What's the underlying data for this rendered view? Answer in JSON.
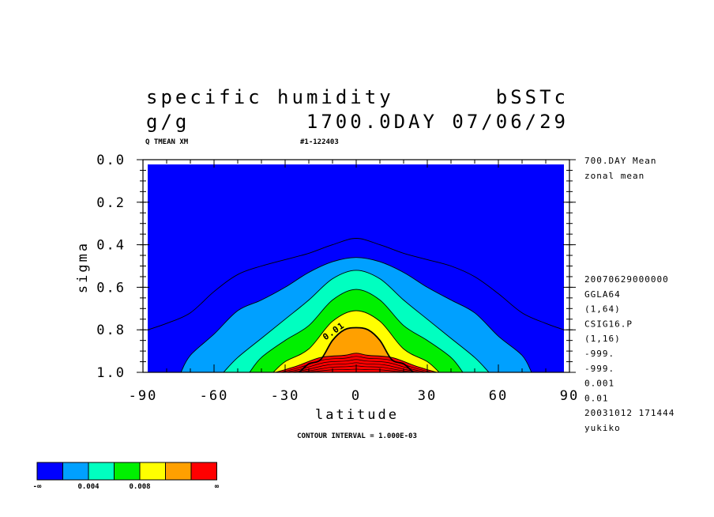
{
  "header": {
    "title_left": "specific humidity",
    "title_right": "bSSTc",
    "units": "g/g",
    "time_info": "1700.0DAY 07/06/29",
    "var_id": "Q TMEAN XM",
    "run_id": "#1-122403"
  },
  "side_info": {
    "top": [
      "700.DAY Mean",
      "zonal mean"
    ],
    "bottom": [
      "20070629000000",
      "GGLA64",
      "(1,64)",
      "CSIG16.P",
      "(1,16)",
      "-999.",
      "-999.",
      "0.001",
      "0.01",
      "20031012 171444",
      "yukiko"
    ]
  },
  "footer": {
    "contour_interval": "CONTOUR INTERVAL = 1.000E-03"
  },
  "legend": {
    "colors": [
      "#0000ff",
      "#00a0ff",
      "#00ffc0",
      "#00f000",
      "#ffff00",
      "#ffa000",
      "#ff0000"
    ],
    "labels": [
      "-∞",
      "0.004",
      "0.008",
      "∞"
    ]
  },
  "chart_data": {
    "type": "heatmap",
    "subtype": "filled-contour",
    "xlabel": "latitude",
    "ylabel": "sigma",
    "xlim": [
      -90,
      90
    ],
    "ylim": [
      1.0,
      0.0
    ],
    "y_inverted": true,
    "x_ticks": [
      "-90",
      "-60",
      "-30",
      "0",
      "30",
      "60",
      "90"
    ],
    "y_ticks": [
      "0.0",
      "0.2",
      "0.4",
      "0.6",
      "0.8",
      "1.0"
    ],
    "contour_label": "0.01",
    "levels": [
      0.001,
      0.002,
      0.004,
      0.006,
      0.008,
      0.01,
      0.012
    ],
    "level_colors": [
      "#00a0ff",
      "#00a0ff",
      "#00ffc0",
      "#00f000",
      "#ffff00",
      "#ffa000",
      "#ff0000"
    ],
    "contours": [
      {
        "level": 0.001,
        "fill": false,
        "lat": [
          -90,
          -80,
          -70,
          -60,
          -50,
          -40,
          -30,
          -20,
          -10,
          0,
          10,
          20,
          30,
          40,
          50,
          60,
          70,
          80,
          90
        ],
        "sigma": [
          0.8,
          0.77,
          0.72,
          0.62,
          0.54,
          0.5,
          0.47,
          0.44,
          0.4,
          0.37,
          0.4,
          0.44,
          0.47,
          0.5,
          0.55,
          0.63,
          0.72,
          0.77,
          0.8
        ]
      },
      {
        "level": 0.002,
        "lat": [
          -74,
          -70,
          -60,
          -50,
          -40,
          -30,
          -20,
          -10,
          0,
          10,
          20,
          30,
          40,
          50,
          60,
          70,
          74
        ],
        "sigma": [
          1.0,
          0.92,
          0.82,
          0.71,
          0.66,
          0.6,
          0.53,
          0.48,
          0.46,
          0.48,
          0.53,
          0.6,
          0.66,
          0.72,
          0.83,
          0.92,
          1.0
        ]
      },
      {
        "level": 0.004,
        "lat": [
          -56,
          -50,
          -40,
          -30,
          -20,
          -10,
          0,
          10,
          20,
          30,
          40,
          50,
          56
        ],
        "sigma": [
          1.0,
          0.93,
          0.84,
          0.75,
          0.66,
          0.56,
          0.52,
          0.56,
          0.66,
          0.75,
          0.84,
          0.93,
          1.0
        ]
      },
      {
        "level": 0.006,
        "lat": [
          -45,
          -40,
          -30,
          -20,
          -10,
          0,
          10,
          20,
          30,
          40,
          45
        ],
        "sigma": [
          1.0,
          0.93,
          0.85,
          0.78,
          0.66,
          0.61,
          0.66,
          0.78,
          0.85,
          0.93,
          1.0
        ]
      },
      {
        "level": 0.008,
        "lat": [
          -35,
          -30,
          -20,
          -10,
          0,
          10,
          20,
          30,
          35
        ],
        "sigma": [
          1.0,
          0.95,
          0.89,
          0.76,
          0.71,
          0.76,
          0.89,
          0.95,
          1.0
        ]
      },
      {
        "level": 0.01,
        "lat": [
          -24,
          -20,
          -15,
          -10,
          -5,
          0,
          5,
          10,
          15,
          20,
          24
        ],
        "sigma": [
          1.0,
          0.96,
          0.94,
          0.85,
          0.8,
          0.79,
          0.8,
          0.85,
          0.94,
          0.96,
          1.0
        ]
      },
      {
        "level": 0.012,
        "lat": [
          -34,
          -25,
          -15,
          -5,
          0,
          5,
          15,
          25,
          34
        ],
        "sigma": [
          1.0,
          0.97,
          0.93,
          0.92,
          0.91,
          0.92,
          0.93,
          0.97,
          1.0
        ]
      }
    ]
  }
}
